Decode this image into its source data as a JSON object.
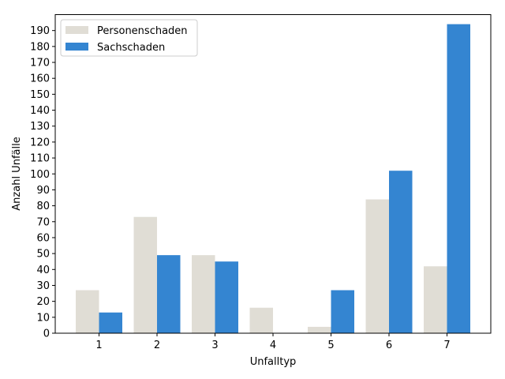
{
  "chart_data": {
    "type": "bar",
    "categories": [
      "1",
      "2",
      "3",
      "4",
      "5",
      "6",
      "7"
    ],
    "series": [
      {
        "name": "Personenschaden",
        "color": "#e0ddd5",
        "values": [
          27,
          73,
          49,
          16,
          4,
          84,
          42
        ]
      },
      {
        "name": "Sachschaden",
        "color": "#3485d1",
        "values": [
          13,
          49,
          45,
          0,
          27,
          102,
          194
        ]
      }
    ],
    "xlabel": "Unfalltyp",
    "ylabel": "Anzahl Unfälle",
    "ylim": [
      0,
      200
    ],
    "yticks": [
      0,
      10,
      20,
      30,
      40,
      50,
      60,
      70,
      80,
      90,
      100,
      110,
      120,
      130,
      140,
      150,
      160,
      170,
      180,
      190
    ],
    "grid": false,
    "legend_position": "top-left"
  }
}
